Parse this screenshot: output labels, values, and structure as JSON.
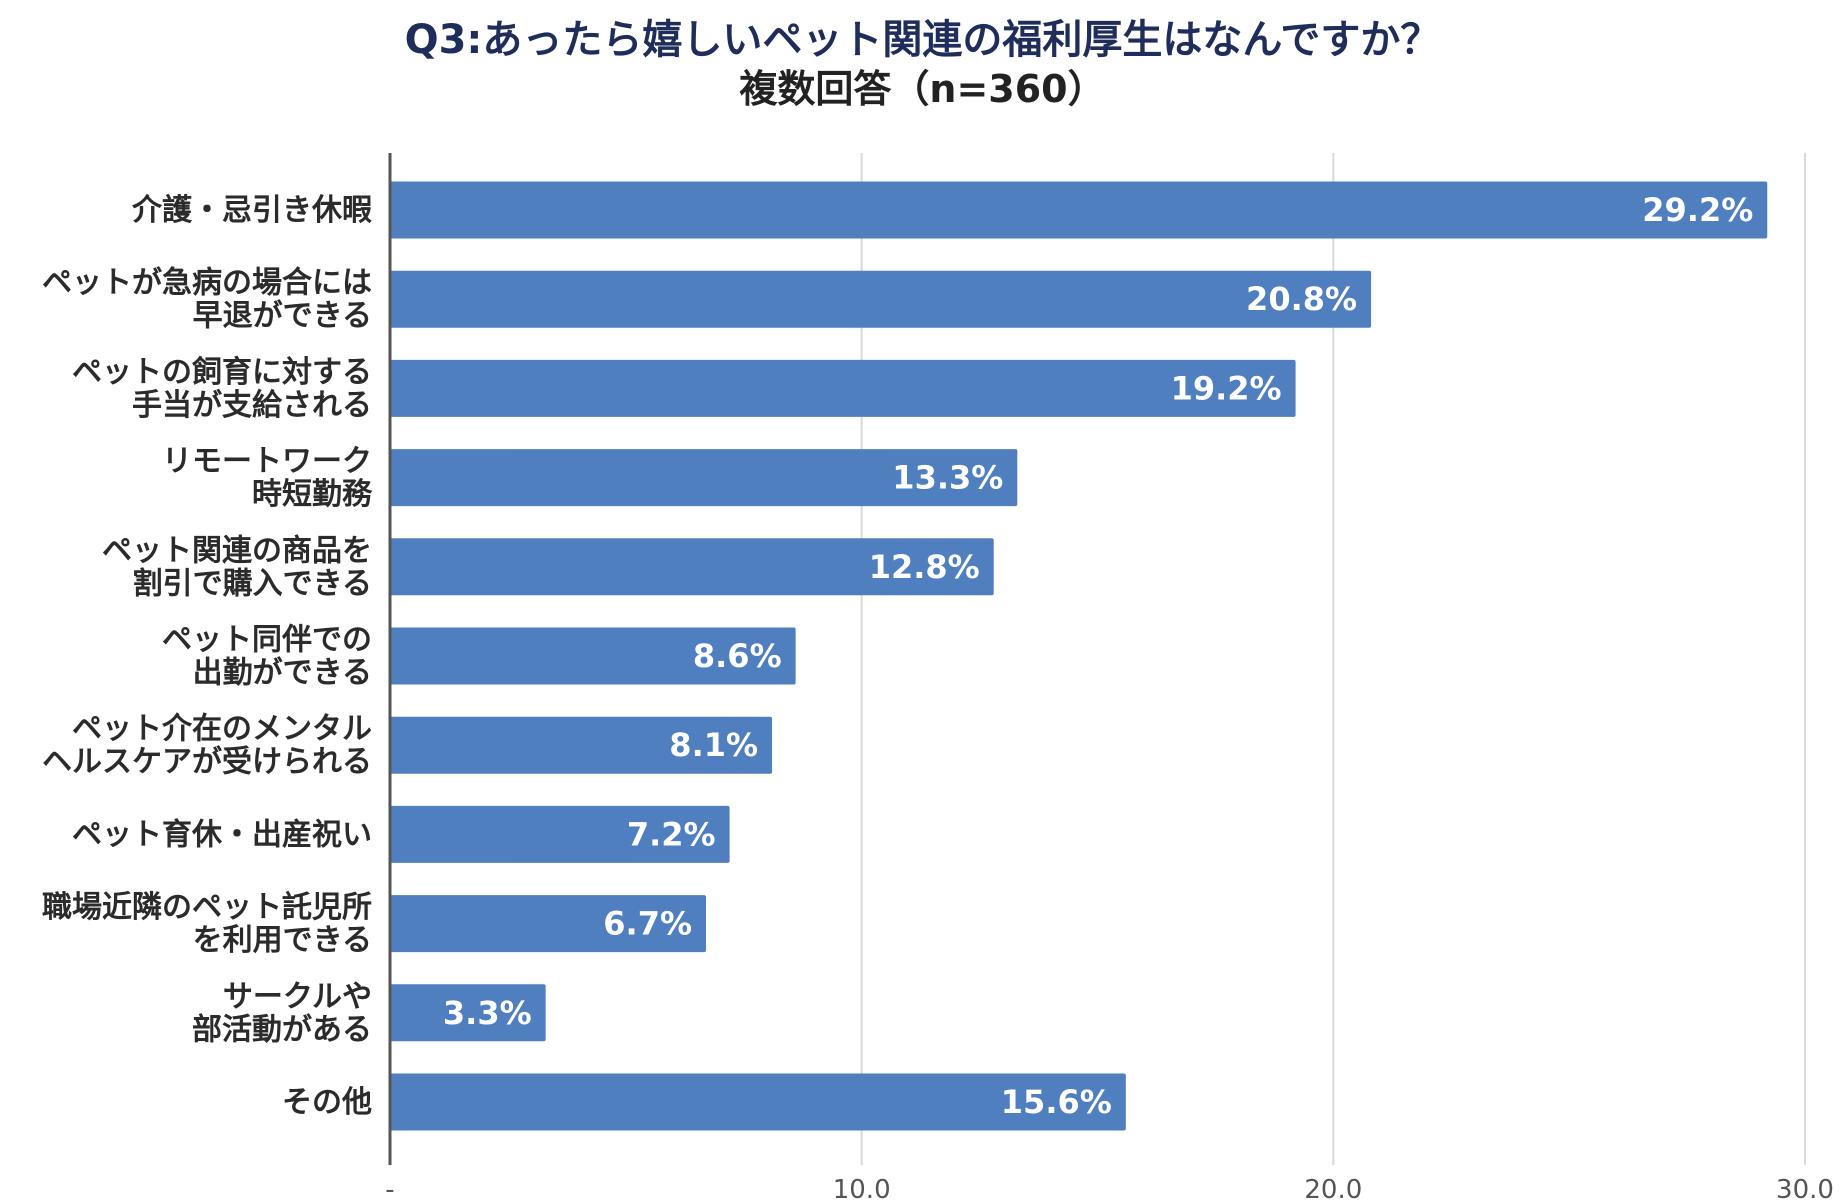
{
  "chart_data": {
    "type": "bar",
    "orientation": "horizontal",
    "title": "Q3:あったら嬉しいペット関連の福利厚生はなんですか？",
    "subtitle": "複数回答（n=360）",
    "categories": [
      [
        "介護・忌引き休暇"
      ],
      [
        "ペットが急病の場合には",
        "早退ができる"
      ],
      [
        "ペットの飼育に対する",
        "手当が支給される"
      ],
      [
        "リモートワーク",
        "時短勤務"
      ],
      [
        "ペット関連の商品を",
        "割引で購入できる"
      ],
      [
        "ペット同伴での",
        "出勤ができる"
      ],
      [
        "ペット介在のメンタル",
        "ヘルスケアが受けられる"
      ],
      [
        "ペット育休・出産祝い"
      ],
      [
        "職場近隣のペット託児所",
        "を利用できる"
      ],
      [
        "サークルや",
        "部活動がある"
      ],
      [
        "その他"
      ]
    ],
    "values": [
      29.2,
      20.8,
      19.2,
      13.3,
      12.8,
      8.6,
      8.1,
      7.2,
      6.7,
      3.3,
      15.6
    ],
    "value_labels": [
      "29.2%",
      "20.8%",
      "19.2%",
      "13.3%",
      "12.8%",
      "8.6%",
      "8.1%",
      "7.2%",
      "6.7%",
      "3.3%",
      "15.6%"
    ],
    "xlim": [
      0,
      30
    ],
    "xticks": [
      0,
      10,
      20,
      30
    ],
    "xtick_labels": [
      "-",
      "10.0",
      "20.0",
      "30.0"
    ],
    "xlabel": "",
    "ylabel": "",
    "grid": true,
    "legend": "none",
    "colors": {
      "bar": "#4f7fbf",
      "grid": "#d9d9d9",
      "axis": "#555555",
      "title": "#1f2d5a"
    }
  }
}
